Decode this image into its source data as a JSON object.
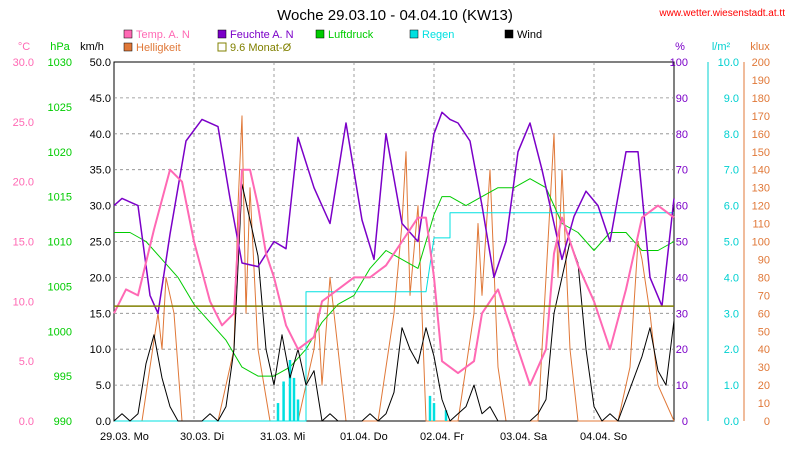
{
  "header": {
    "title": "Woche 29.03.10 - 04.04.10 (KW13)",
    "website": "www.wetter.wiesenstadt.at.tt"
  },
  "chart_data": {
    "type": "line",
    "title": "Woche 29.03.10 - 04.04.10 (KW13)",
    "x_categories": [
      "29.03.  Mo",
      "30.03.  Di",
      "31.03.  Mi",
      "01.04.  Do",
      "02.04.  Fr",
      "03.04.  Sa",
      "04.04.  So"
    ],
    "grid": true,
    "axes": {
      "temp": {
        "unit": "°C",
        "color": "#ff69b4",
        "ticks": [
          "0.0",
          "5.0",
          "10.0",
          "15.0",
          "20.0",
          "25.0",
          "30.0"
        ],
        "range": [
          0,
          30
        ]
      },
      "pressure": {
        "unit": "hPa",
        "color": "#00cc00",
        "ticks": [
          "990",
          "995",
          "1000",
          "1005",
          "1010",
          "1015",
          "1020",
          "1025",
          "1030"
        ],
        "range": [
          990,
          1030
        ]
      },
      "wind": {
        "unit": "km/h",
        "color": "#000000",
        "ticks": [
          "0.0",
          "5.0",
          "10.0",
          "15.0",
          "20.0",
          "25.0",
          "30.0",
          "35.0",
          "40.0",
          "45.0",
          "50.0"
        ],
        "range": [
          0,
          50
        ]
      },
      "humidity": {
        "unit": "%",
        "color": "#7b00c8",
        "ticks": [
          "0",
          "10",
          "20",
          "30",
          "40",
          "50",
          "60",
          "70",
          "80",
          "90",
          "100"
        ],
        "range": [
          0,
          100
        ]
      },
      "rain": {
        "unit": "l/m²",
        "color": "#00d0d0",
        "ticks": [
          "0.0",
          "1.0",
          "2.0",
          "3.0",
          "4.0",
          "5.0",
          "6.0",
          "7.0",
          "8.0",
          "9.0",
          "10.0"
        ],
        "range": [
          0,
          10
        ]
      },
      "light": {
        "unit": "klux",
        "color": "#e07838",
        "ticks": [
          "0",
          "10",
          "20",
          "30",
          "40",
          "50",
          "60",
          "70",
          "80",
          "90",
          "100",
          "110",
          "120",
          "130",
          "140",
          "150",
          "160",
          "170",
          "180",
          "190",
          "200"
        ],
        "range": [
          0,
          200
        ]
      }
    },
    "legend": [
      {
        "label": "Temp. A. N",
        "color": "#ff69b4",
        "style": "box"
      },
      {
        "label": "Feuchte A. N",
        "color": "#7b00c8",
        "style": "box"
      },
      {
        "label": "Luftdruck",
        "color": "#00cc00",
        "style": "box"
      },
      {
        "label": "Regen",
        "color": "#00e0e0",
        "style": "box"
      },
      {
        "label": "Wind",
        "color": "#000000",
        "style": "box"
      },
      {
        "label": "Helligkeit",
        "color": "#e07838",
        "style": "box"
      },
      {
        "label": "9.6 Monat-Ø",
        "color": "#808000",
        "style": "outline"
      }
    ],
    "reference_line": {
      "label": "9.6 Monat-Ø",
      "axis": "temp",
      "value": 9.6,
      "color": "#808000"
    },
    "x_range_days": [
      0,
      7
    ],
    "series": [
      {
        "name": "Temp. A. N",
        "axis": "temp",
        "color": "#ff69b4",
        "width": 2,
        "x": [
          0,
          0.15,
          0.3,
          0.5,
          0.7,
          0.85,
          1.0,
          1.2,
          1.35,
          1.5,
          1.6,
          1.7,
          1.8,
          1.9,
          2.0,
          2.15,
          2.3,
          2.5,
          2.6,
          2.8,
          3.0,
          3.2,
          3.4,
          3.6,
          3.8,
          3.9,
          4.0,
          4.1,
          4.3,
          4.5,
          4.6,
          4.8,
          5.0,
          5.2,
          5.4,
          5.5,
          5.6,
          5.8,
          6.0,
          6.2,
          6.4,
          6.6,
          6.8,
          7.0
        ],
        "y": [
          9,
          11,
          10.5,
          16,
          21,
          20,
          15,
          10,
          8,
          9,
          21,
          21,
          18,
          14,
          12,
          8,
          6,
          7,
          10,
          11,
          12,
          12,
          13,
          15,
          17,
          17,
          12,
          5,
          4,
          5,
          9,
          11,
          7,
          3,
          6,
          14,
          17,
          13,
          10,
          6,
          11,
          17,
          18,
          17
        ]
      },
      {
        "name": "Feuchte A. N",
        "axis": "humidity",
        "color": "#7b00c8",
        "width": 1.5,
        "x": [
          0,
          0.1,
          0.3,
          0.45,
          0.55,
          0.7,
          0.9,
          1.1,
          1.3,
          1.45,
          1.6,
          1.8,
          2.0,
          2.15,
          2.3,
          2.5,
          2.7,
          2.9,
          3.1,
          3.25,
          3.4,
          3.6,
          3.8,
          4.0,
          4.1,
          4.2,
          4.3,
          4.45,
          4.6,
          4.75,
          4.9,
          5.05,
          5.2,
          5.35,
          5.5,
          5.6,
          5.75,
          5.9,
          6.05,
          6.2,
          6.4,
          6.55,
          6.7,
          6.85,
          7.0
        ],
        "y": [
          60,
          62,
          60,
          35,
          30,
          52,
          78,
          84,
          82,
          62,
          44,
          43,
          50,
          48,
          79,
          65,
          55,
          83,
          56,
          45,
          80,
          55,
          50,
          80,
          86,
          84,
          83,
          78,
          60,
          40,
          50,
          75,
          83,
          70,
          55,
          45,
          57,
          64,
          60,
          50,
          75,
          75,
          40,
          32,
          62
        ]
      },
      {
        "name": "Luftdruck",
        "axis": "pressure",
        "color": "#00cc00",
        "width": 1,
        "x": [
          0,
          0.2,
          0.4,
          0.6,
          0.8,
          1.0,
          1.2,
          1.4,
          1.6,
          1.8,
          2.0,
          2.2,
          2.4,
          2.6,
          2.8,
          3.0,
          3.2,
          3.4,
          3.6,
          3.8,
          4.0,
          4.1,
          4.2,
          4.4,
          4.6,
          4.8,
          5.0,
          5.2,
          5.4,
          5.6,
          5.8,
          6.0,
          6.2,
          6.4,
          6.6,
          6.8,
          7.0
        ],
        "y": [
          1011,
          1011,
          1010,
          1008,
          1006,
          1003,
          1001,
          999,
          996,
          995,
          995,
          996,
          998,
          1001,
          1003,
          1004,
          1007,
          1009,
          1008,
          1007,
          1013,
          1015,
          1015,
          1014,
          1015,
          1016,
          1016,
          1017,
          1016,
          1012,
          1011,
          1009,
          1011,
          1011,
          1009,
          1009,
          1010
        ]
      },
      {
        "name": "Regen",
        "axis": "rain",
        "color": "#00e0e0",
        "width": 1,
        "x": [
          0,
          2.4,
          2.4,
          3.2,
          3.9,
          4.0,
          4.1,
          4.2,
          4.2,
          7.0
        ],
        "y": [
          0,
          0,
          3.6,
          3.6,
          3.6,
          5.1,
          5.1,
          5.1,
          5.8,
          5.8
        ]
      },
      {
        "name": "Regen (Intensität)",
        "axis": "rain",
        "color": "#00e0e0",
        "width": 2,
        "bars_x": [
          2.05,
          2.12,
          2.2,
          2.25,
          2.3,
          3.95,
          4.0,
          4.15
        ],
        "bars_y": [
          0.5,
          1.1,
          1.7,
          1.2,
          0.6,
          0.7,
          0.5,
          0.3
        ]
      },
      {
        "name": "Wind",
        "axis": "wind",
        "color": "#000000",
        "width": 1,
        "x": [
          0,
          0.1,
          0.2,
          0.3,
          0.4,
          0.5,
          0.6,
          0.7,
          0.8,
          0.9,
          1.0,
          1.1,
          1.2,
          1.3,
          1.4,
          1.5,
          1.6,
          1.7,
          1.8,
          1.9,
          2.0,
          2.1,
          2.2,
          2.3,
          2.4,
          2.5,
          2.6,
          2.7,
          2.8,
          2.9,
          3.0,
          3.1,
          3.2,
          3.3,
          3.4,
          3.5,
          3.6,
          3.7,
          3.8,
          3.9,
          4.0,
          4.1,
          4.2,
          4.3,
          4.4,
          4.5,
          4.6,
          4.7,
          4.8,
          4.9,
          5.0,
          5.1,
          5.2,
          5.3,
          5.4,
          5.5,
          5.6,
          5.7,
          5.8,
          5.9,
          6.0,
          6.1,
          6.2,
          6.3,
          6.4,
          6.5,
          6.6,
          6.7,
          6.8,
          6.9,
          7.0
        ],
        "y": [
          0,
          1,
          0,
          1,
          8,
          12,
          6,
          2,
          0,
          0,
          0,
          0,
          1,
          0,
          2,
          10,
          33,
          28,
          23,
          10,
          5,
          12,
          6,
          10,
          5,
          7,
          0,
          1,
          0,
          0,
          0,
          0,
          1,
          0,
          1,
          4,
          13,
          10,
          8,
          13,
          9,
          3,
          0,
          1,
          2,
          5,
          1,
          2,
          0,
          0,
          0,
          0,
          0,
          1,
          3,
          15,
          20,
          25,
          22,
          10,
          2,
          0,
          1,
          0,
          3,
          6,
          9,
          13,
          7,
          5,
          14
        ]
      },
      {
        "name": "Helligkeit",
        "axis": "light",
        "color": "#e07838",
        "width": 1,
        "x": [
          0,
          0.35,
          0.45,
          0.55,
          0.6,
          0.65,
          0.75,
          0.85,
          1.3,
          1.5,
          1.55,
          1.6,
          1.65,
          1.7,
          1.8,
          1.95,
          2.3,
          2.5,
          2.55,
          2.6,
          2.7,
          2.8,
          2.9,
          3.3,
          3.5,
          3.6,
          3.65,
          3.7,
          3.8,
          3.9,
          4.3,
          4.5,
          4.55,
          4.6,
          4.7,
          4.8,
          4.9,
          5.3,
          5.45,
          5.5,
          5.55,
          5.6,
          5.7,
          5.8,
          5.95,
          6.3,
          6.45,
          6.55,
          6.6,
          6.7,
          6.8,
          7.0
        ],
        "y": [
          0,
          0,
          30,
          60,
          40,
          80,
          60,
          0,
          0,
          40,
          120,
          170,
          60,
          130,
          40,
          0,
          0,
          40,
          60,
          20,
          80,
          40,
          0,
          0,
          60,
          110,
          150,
          70,
          120,
          0,
          0,
          60,
          110,
          70,
          140,
          30,
          0,
          0,
          120,
          160,
          80,
          140,
          40,
          0,
          0,
          0,
          30,
          100,
          90,
          60,
          20,
          0
        ]
      }
    ]
  }
}
